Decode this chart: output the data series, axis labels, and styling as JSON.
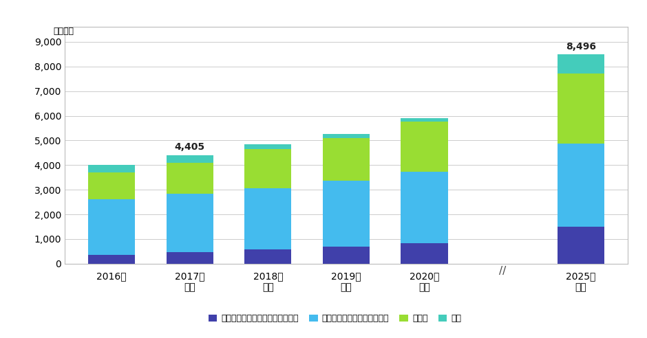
{
  "categories": [
    "2016年",
    "2017年\n見込",
    "2018年\n予測",
    "2019年\n予測",
    "2020年\n予測",
    "2025年\n予測"
  ],
  "robotics": [
    350,
    470,
    570,
    680,
    820,
    1490
  ],
  "logistics": [
    2260,
    2380,
    2500,
    2700,
    2900,
    3380
  ],
  "iot": [
    1100,
    1250,
    1570,
    1720,
    2050,
    2840
  ],
  "ai": [
    290,
    305,
    210,
    170,
    120,
    786
  ],
  "robotics_color": "#4040aa",
  "logistics_color": "#44bbee",
  "iot_color": "#99dd33",
  "ai_color": "#44ccbb",
  "annotation_2017": "4,405",
  "annotation_2025": "8,496",
  "ylabel": "（億円）",
  "ylim": [
    0,
    9600
  ],
  "yticks": [
    0,
    1000,
    2000,
    3000,
    4000,
    5000,
    6000,
    7000,
    8000,
    9000
  ],
  "legend_labels": [
    "ロボティクス・オートメーション",
    "ロジスティクスファシリティ",
    "ＩｏＴ",
    "ＡＩ"
  ],
  "bg_color": "#ffffff",
  "plot_bg_color": "#ffffff",
  "grid_color": "#cccccc",
  "border_color": "#bbbbbb"
}
